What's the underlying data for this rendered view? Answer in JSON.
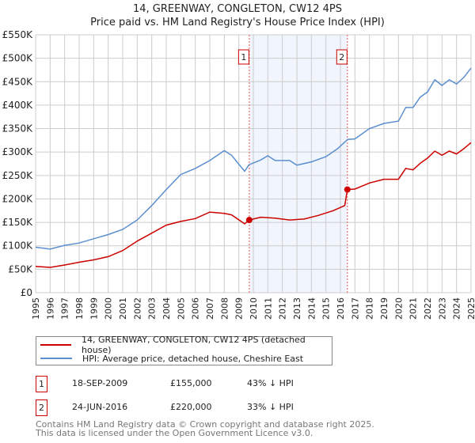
{
  "title": "14, GREENWAY, CONGLETON, CW12 4PS",
  "subtitle": "Price paid vs. HM Land Registry's House Price Index (HPI)",
  "chart_data": {
    "type": "line",
    "title": "14, GREENWAY, CONGLETON, CW12 4PS",
    "subtitle": "Price paid vs. HM Land Registry's House Price Index (HPI)",
    "xlim": [
      1995,
      2025
    ],
    "ylim": [
      0,
      550000
    ],
    "x_ticks": [
      "1995",
      "1996",
      "1997",
      "1998",
      "1999",
      "2000",
      "2001",
      "2002",
      "2003",
      "2004",
      "2005",
      "2006",
      "2007",
      "2008",
      "2009",
      "2010",
      "2011",
      "2012",
      "2013",
      "2014",
      "2015",
      "2016",
      "2017",
      "2018",
      "2019",
      "2020",
      "2021",
      "2022",
      "2023",
      "2024",
      "2025"
    ],
    "y_ticks": [
      {
        "v": 0,
        "label": "£0"
      },
      {
        "v": 50000,
        "label": "£50K"
      },
      {
        "v": 100000,
        "label": "£100K"
      },
      {
        "v": 150000,
        "label": "£150K"
      },
      {
        "v": 200000,
        "label": "£200K"
      },
      {
        "v": 250000,
        "label": "£250K"
      },
      {
        "v": 300000,
        "label": "£300K"
      },
      {
        "v": 350000,
        "label": "£350K"
      },
      {
        "v": 400000,
        "label": "£400K"
      },
      {
        "v": 450000,
        "label": "£450K"
      },
      {
        "v": 500000,
        "label": "£500K"
      },
      {
        "v": 550000,
        "label": "£550K"
      }
    ],
    "grid": true,
    "shaded_range": [
      2009.72,
      2016.48
    ],
    "series": [
      {
        "name": "14, GREENWAY, CONGLETON, CW12 4PS (detached house)",
        "color": "#cc0000",
        "x": [
          1995,
          1996,
          1997,
          1998,
          1999,
          2000,
          2001,
          2002,
          2003,
          2004,
          2005,
          2006,
          2007,
          2008,
          2008.5,
          2009.4,
          2009.72,
          2010.5,
          2011.5,
          2012.5,
          2013.5,
          2014.5,
          2015.5,
          2016.3,
          2016.48,
          2017,
          2018,
          2019,
          2020,
          2020.5,
          2021,
          2021.5,
          2022,
          2022.5,
          2023,
          2023.5,
          2024,
          2024.5,
          2025
        ],
        "y": [
          56000,
          54000,
          59000,
          65000,
          70000,
          77000,
          90000,
          110000,
          127000,
          144000,
          152000,
          158000,
          172000,
          169000,
          166000,
          147000,
          155000,
          161000,
          159000,
          155000,
          157000,
          165000,
          175000,
          186000,
          220000,
          221000,
          234000,
          242000,
          242000,
          265000,
          262000,
          276000,
          287000,
          302000,
          293000,
          302000,
          296000,
          307000,
          320000
        ]
      },
      {
        "name": "HPI: Average price, detached house, Cheshire East",
        "color": "#5b8fd0",
        "x": [
          1995,
          1996,
          1997,
          1998,
          1999,
          2000,
          2001,
          2002,
          2003,
          2004,
          2005,
          2006,
          2007,
          2008,
          2008.5,
          2009.4,
          2009.7,
          2010.5,
          2011,
          2011.5,
          2012.5,
          2013,
          2014,
          2015,
          2015.8,
          2016.5,
          2017,
          2018,
          2019,
          2020,
          2020.5,
          2021,
          2021.5,
          2022,
          2022.5,
          2023,
          2023.5,
          2024,
          2024.5,
          2025
        ],
        "y": [
          97000,
          93000,
          101000,
          106000,
          115000,
          124000,
          135000,
          155000,
          186000,
          220000,
          252000,
          265000,
          282000,
          303000,
          293000,
          259000,
          273000,
          283000,
          292000,
          282000,
          282000,
          272000,
          279000,
          290000,
          307000,
          327000,
          328000,
          350000,
          361000,
          366000,
          395000,
          395000,
          417000,
          428000,
          454000,
          442000,
          454000,
          445000,
          459000,
          479000
        ]
      }
    ],
    "annotations": [
      {
        "label": "1",
        "x": 2009.72,
        "y": 155000
      },
      {
        "label": "2",
        "x": 2016.48,
        "y": 220000
      }
    ],
    "legend_placement": "bottom"
  },
  "legend": [
    {
      "label": "14, GREENWAY, CONGLETON, CW12 4PS (detached house)",
      "color": "#cc0000"
    },
    {
      "label": "HPI: Average price, detached house, Cheshire East",
      "color": "#5b8fd0"
    }
  ],
  "transactions": [
    {
      "num": "1",
      "date": "18-SEP-2009",
      "price": "£155,000",
      "hpi": "43% ↓ HPI"
    },
    {
      "num": "2",
      "date": "24-JUN-2016",
      "price": "£220,000",
      "hpi": "33% ↓ HPI"
    }
  ],
  "footer": {
    "line1": "Contains HM Land Registry data © Crown copyright and database right 2025.",
    "line2": "This data is licensed under the Open Government Licence v3.0."
  }
}
